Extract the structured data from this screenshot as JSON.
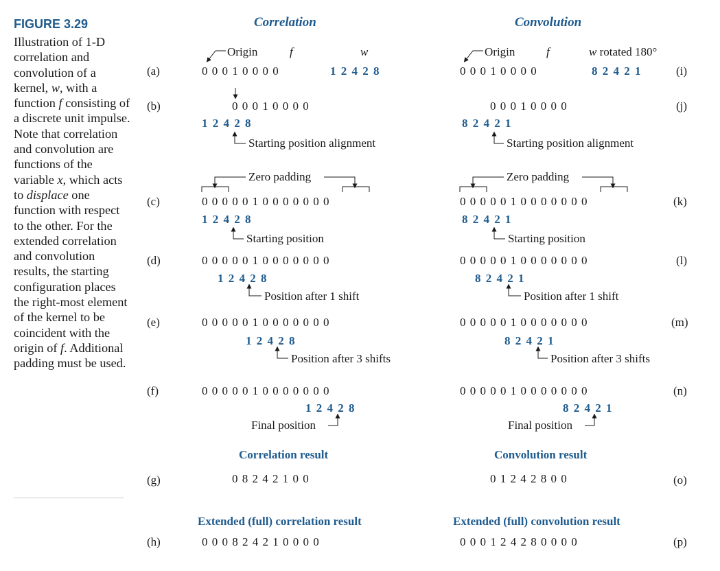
{
  "figure": {
    "title": "FIGURE 3.29",
    "caption_parts": [
      "Illustration of 1-D correlation and convolution of a kernel, ",
      "w",
      ", with a function ",
      "f",
      " consisting of a discrete unit impulse. Note that correlation and convolution are functions of the variable ",
      "x",
      ", which acts to ",
      "displace",
      " one function with respect to the other. For the extended correlation and convolution results, the starting configuration places the right-most element of the kernel to be coincident with the origin of ",
      "f",
      ". Additional padding must be used."
    ]
  },
  "headers": {
    "left": "Correlation",
    "right": "Convolution"
  },
  "labels": {
    "origin": "Origin",
    "f": "f",
    "w": "w",
    "w_rot": "w",
    "w_rot_suffix": " rotated 180°",
    "start_align": "Starting position alignment",
    "zero_padding": "Zero padding",
    "start_pos": "Starting position",
    "after1": "Position after 1 shift",
    "after3": "Position after 3 shifts",
    "final": "Final position"
  },
  "row_labels": {
    "a": "(a)",
    "b": "(b)",
    "c": "(c)",
    "d": "(d)",
    "e": "(e)",
    "f": "(f)",
    "g": "(g)",
    "h": "(h)",
    "i": "(i)",
    "j": "(j)",
    "k": "(k)",
    "l": "(l)",
    "m": "(m)",
    "n": "(n)",
    "o": "(o)",
    "p": "(p)"
  },
  "sequences": {
    "f_short": "0 0 0 1 0 0 0 0",
    "f_padded": "0 0 0 0 0 1 0 0 0 0 0 0 0",
    "kernel_w": "1 2 4 2 8",
    "kernel_rot": "8 2 4 2 1"
  },
  "results": {
    "corr_title": "Correlation result",
    "corr": "0 8 2 4 2 1 0 0",
    "conv_title": "Convolution result",
    "conv": "0 1 2 4 2 8 0 0",
    "full_corr_title": "Extended (full) correlation result",
    "full_corr": "0 0 0 8 2 4 2 1 0 0 0 0",
    "full_conv_title": "Extended (full) convolution result",
    "full_conv": "0 0 0 1 2 4 2 8 0 0 0 0"
  }
}
